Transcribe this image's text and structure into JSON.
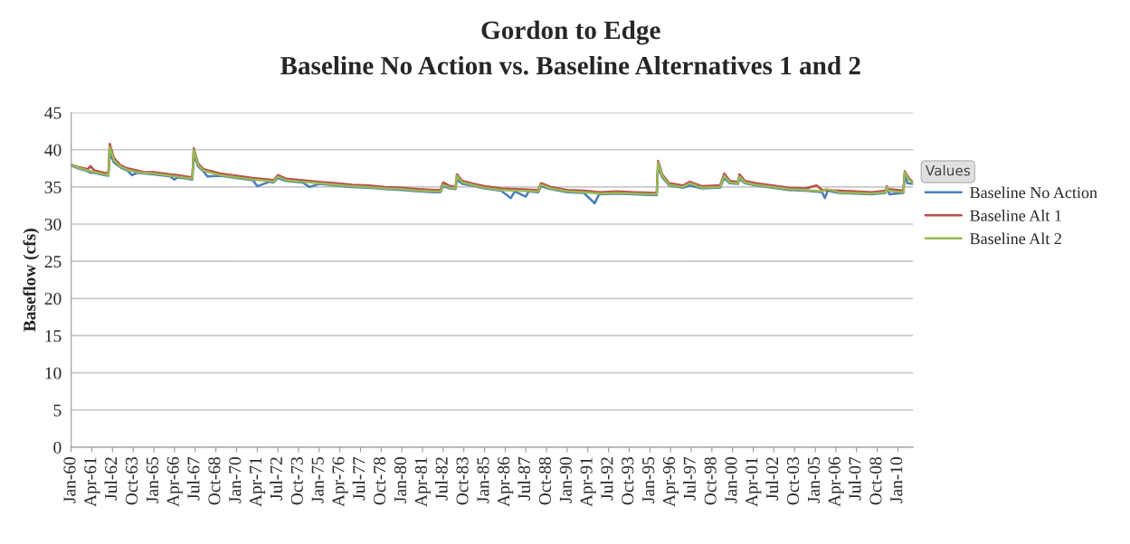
{
  "chart_data": {
    "type": "line",
    "title": "Gordon to Edge",
    "subtitle": "Baseline No Action vs. Baseline Alternatives 1 and 2",
    "ylabel": "Baseflow (cfs)",
    "legend_title": "Values",
    "legend": "right",
    "grid": "y",
    "marker": "none",
    "line_style": "solid",
    "ylim": [
      0,
      45
    ],
    "yticks": [
      0,
      5,
      10,
      15,
      20,
      25,
      30,
      35,
      40,
      45
    ],
    "xlim": [
      "1960-01",
      "2010-12"
    ],
    "xticks": [
      {
        "value": "1960-01",
        "label": "Jan-60"
      },
      {
        "value": "1961-04",
        "label": "Apr-61"
      },
      {
        "value": "1962-07",
        "label": "Jul-62"
      },
      {
        "value": "1963-10",
        "label": "Oct-63"
      },
      {
        "value": "1965-01",
        "label": "Jan-65"
      },
      {
        "value": "1966-04",
        "label": "Apr-66"
      },
      {
        "value": "1967-07",
        "label": "Jul-67"
      },
      {
        "value": "1968-10",
        "label": "Oct-68"
      },
      {
        "value": "1970-01",
        "label": "Jan-70"
      },
      {
        "value": "1971-04",
        "label": "Apr-71"
      },
      {
        "value": "1972-07",
        "label": "Jul-72"
      },
      {
        "value": "1973-10",
        "label": "Oct-73"
      },
      {
        "value": "1975-01",
        "label": "Jan-75"
      },
      {
        "value": "1976-04",
        "label": "Apr-76"
      },
      {
        "value": "1977-07",
        "label": "Jul-77"
      },
      {
        "value": "1978-10",
        "label": "Oct-78"
      },
      {
        "value": "1980-01",
        "label": "Jan-80"
      },
      {
        "value": "1981-04",
        "label": "Apr-81"
      },
      {
        "value": "1982-07",
        "label": "Jul-82"
      },
      {
        "value": "1983-10",
        "label": "Oct-83"
      },
      {
        "value": "1985-01",
        "label": "Jan-85"
      },
      {
        "value": "1986-04",
        "label": "Apr-86"
      },
      {
        "value": "1987-07",
        "label": "Jul-87"
      },
      {
        "value": "1988-10",
        "label": "Oct-88"
      },
      {
        "value": "1990-01",
        "label": "Jan-90"
      },
      {
        "value": "1991-04",
        "label": "Apr-91"
      },
      {
        "value": "1992-07",
        "label": "Jul-92"
      },
      {
        "value": "1993-10",
        "label": "Oct-93"
      },
      {
        "value": "1995-01",
        "label": "Jan-95"
      },
      {
        "value": "1996-04",
        "label": "Apr-96"
      },
      {
        "value": "1997-07",
        "label": "Jul-97"
      },
      {
        "value": "1998-10",
        "label": "Oct-98"
      },
      {
        "value": "2000-01",
        "label": "Jan-00"
      },
      {
        "value": "2001-04",
        "label": "Apr-01"
      },
      {
        "value": "2002-07",
        "label": "Jul-02"
      },
      {
        "value": "2003-10",
        "label": "Oct-03"
      },
      {
        "value": "2005-01",
        "label": "Jan-05"
      },
      {
        "value": "2006-04",
        "label": "Apr-06"
      },
      {
        "value": "2007-07",
        "label": "Jul-07"
      },
      {
        "value": "2008-10",
        "label": "Oct-08"
      },
      {
        "value": "2010-01",
        "label": "Jan-10"
      }
    ],
    "series": [
      {
        "name": "Baseline No Action",
        "color": "#4a7ebb",
        "x": [
          "1960-01",
          "1960-06",
          "1961-01",
          "1961-03",
          "1961-06",
          "1962-01",
          "1962-04",
          "1962-05",
          "1962-08",
          "1963-01",
          "1963-06",
          "1963-09",
          "1964-01",
          "1964-06",
          "1965-01",
          "1966-01",
          "1966-04",
          "1966-06",
          "1967-01",
          "1967-05",
          "1967-06",
          "1967-09",
          "1968-01",
          "1968-04",
          "1969-01",
          "1970-01",
          "1971-01",
          "1971-04",
          "1972-01",
          "1972-04",
          "1972-07",
          "1973-01",
          "1974-01",
          "1974-06",
          "1975-01",
          "1976-01",
          "1977-01",
          "1978-01",
          "1979-01",
          "1980-01",
          "1981-01",
          "1982-01",
          "1982-05",
          "1982-07",
          "1982-12",
          "1983-04",
          "1983-05",
          "1983-09",
          "1984-06",
          "1985-01",
          "1986-01",
          "1986-08",
          "1986-11",
          "1987-07",
          "1987-09",
          "1988-04",
          "1988-06",
          "1989-01",
          "1990-01",
          "1991-01",
          "1991-09",
          "1991-12",
          "1992-01",
          "1993-01",
          "1994-01",
          "1995-06",
          "1995-07",
          "1995-10",
          "1996-03",
          "1997-01",
          "1997-06",
          "1998-03",
          "1999-01",
          "1999-04",
          "1999-07",
          "1999-11",
          "2000-05",
          "2000-06",
          "2000-10",
          "2001-06",
          "2002-06",
          "2003-06",
          "2004-06",
          "2005-06",
          "2005-08",
          "2005-10",
          "2006-06",
          "2007-06",
          "2008-06",
          "2009-04",
          "2009-05",
          "2009-07",
          "2010-05",
          "2010-06",
          "2010-08",
          "2010-12"
        ],
        "values": [
          37.9,
          37.5,
          37.1,
          36.9,
          36.9,
          36.6,
          36.5,
          39.5,
          38.3,
          37.6,
          37.2,
          36.6,
          36.9,
          36.8,
          36.7,
          36.4,
          36.0,
          36.3,
          36.1,
          36.0,
          39.3,
          37.8,
          37.1,
          36.4,
          36.5,
          36.2,
          35.9,
          35.1,
          35.7,
          35.6,
          36.2,
          35.8,
          35.6,
          35.0,
          35.4,
          35.2,
          35.0,
          34.9,
          34.7,
          34.6,
          34.4,
          34.3,
          34.3,
          35.1,
          34.8,
          34.7,
          36.0,
          35.4,
          35.1,
          34.8,
          34.5,
          33.5,
          34.4,
          33.7,
          34.4,
          34.3,
          35.1,
          34.7,
          34.3,
          34.2,
          32.8,
          34.0,
          34.0,
          34.1,
          34.0,
          33.9,
          37.8,
          36.3,
          35.2,
          34.9,
          35.2,
          34.8,
          34.9,
          34.9,
          36.2,
          35.5,
          35.4,
          36.1,
          35.5,
          35.2,
          34.9,
          34.6,
          34.5,
          34.3,
          33.5,
          34.5,
          34.2,
          34.1,
          34.0,
          34.2,
          34.8,
          34.0,
          34.2,
          36.6,
          35.5,
          35.4
        ]
      },
      {
        "name": "Baseline Alt 1",
        "color": "#be4b48",
        "x": [
          "1960-01",
          "1960-06",
          "1961-01",
          "1961-03",
          "1961-06",
          "1962-01",
          "1962-04",
          "1962-05",
          "1962-08",
          "1963-01",
          "1963-06",
          "1964-01",
          "1964-06",
          "1965-01",
          "1966-01",
          "1966-06",
          "1967-01",
          "1967-05",
          "1967-06",
          "1967-09",
          "1968-01",
          "1969-01",
          "1970-01",
          "1971-01",
          "1972-01",
          "1972-04",
          "1972-07",
          "1973-01",
          "1974-01",
          "1975-01",
          "1976-01",
          "1977-01",
          "1978-01",
          "1979-01",
          "1980-01",
          "1981-01",
          "1982-01",
          "1982-05",
          "1982-07",
          "1982-12",
          "1983-04",
          "1983-05",
          "1983-09",
          "1984-06",
          "1985-01",
          "1986-01",
          "1987-01",
          "1988-04",
          "1988-06",
          "1989-01",
          "1990-01",
          "1991-01",
          "1992-01",
          "1993-01",
          "1994-01",
          "1995-06",
          "1995-07",
          "1995-10",
          "1996-03",
          "1997-01",
          "1997-06",
          "1998-03",
          "1999-01",
          "1999-04",
          "1999-07",
          "1999-11",
          "2000-05",
          "2000-06",
          "2000-10",
          "2001-06",
          "2002-06",
          "2003-06",
          "2004-06",
          "2005-02",
          "2005-06",
          "2006-06",
          "2007-06",
          "2008-06",
          "2009-04",
          "2009-05",
          "2009-06",
          "2010-05",
          "2010-06",
          "2010-09",
          "2010-12"
        ],
        "values": [
          38.0,
          37.7,
          37.4,
          37.8,
          37.2,
          36.9,
          36.8,
          40.8,
          38.9,
          37.9,
          37.5,
          37.2,
          37.0,
          37.0,
          36.7,
          36.6,
          36.4,
          36.3,
          40.2,
          38.2,
          37.4,
          36.8,
          36.5,
          36.2,
          36.0,
          35.9,
          36.6,
          36.1,
          35.9,
          35.7,
          35.5,
          35.3,
          35.2,
          35.0,
          34.9,
          34.7,
          34.6,
          34.6,
          35.6,
          35.1,
          35.0,
          36.7,
          35.8,
          35.4,
          35.1,
          34.8,
          34.7,
          34.6,
          35.5,
          35.0,
          34.6,
          34.5,
          34.3,
          34.4,
          34.3,
          34.2,
          38.5,
          36.7,
          35.5,
          35.2,
          35.7,
          35.1,
          35.2,
          35.2,
          36.8,
          35.8,
          35.7,
          36.7,
          35.8,
          35.5,
          35.2,
          34.9,
          34.8,
          35.2,
          34.6,
          34.5,
          34.4,
          34.3,
          34.5,
          35.1,
          34.7,
          34.5,
          37.1,
          36.2,
          35.6
        ]
      },
      {
        "name": "Baseline Alt 2",
        "color": "#98b954",
        "x": [
          "1960-01",
          "1960-06",
          "1961-01",
          "1961-06",
          "1962-01",
          "1962-04",
          "1962-05",
          "1962-08",
          "1963-01",
          "1963-06",
          "1964-01",
          "1964-06",
          "1965-01",
          "1966-01",
          "1966-06",
          "1967-01",
          "1967-05",
          "1967-06",
          "1967-09",
          "1968-01",
          "1969-01",
          "1970-01",
          "1971-01",
          "1972-01",
          "1972-04",
          "1972-07",
          "1973-01",
          "1974-01",
          "1975-01",
          "1976-01",
          "1977-01",
          "1978-01",
          "1979-01",
          "1980-01",
          "1981-01",
          "1982-01",
          "1982-05",
          "1982-07",
          "1982-12",
          "1983-04",
          "1983-05",
          "1983-09",
          "1984-06",
          "1985-01",
          "1986-01",
          "1987-01",
          "1988-04",
          "1988-06",
          "1989-01",
          "1990-01",
          "1991-01",
          "1992-01",
          "1993-01",
          "1994-01",
          "1995-06",
          "1995-07",
          "1995-10",
          "1996-03",
          "1997-01",
          "1997-06",
          "1998-03",
          "1999-01",
          "1999-04",
          "1999-07",
          "1999-11",
          "2000-05",
          "2000-06",
          "2000-10",
          "2001-06",
          "2002-06",
          "2003-06",
          "2004-06",
          "2005-06",
          "2005-09",
          "2006-06",
          "2007-06",
          "2008-06",
          "2009-04",
          "2009-05",
          "2009-06",
          "2010-05",
          "2010-06",
          "2010-09",
          "2010-12"
        ],
        "values": [
          38.0,
          37.6,
          37.2,
          37.0,
          36.7,
          36.6,
          40.4,
          38.6,
          37.7,
          37.3,
          37.0,
          36.9,
          36.8,
          36.5,
          36.4,
          36.2,
          36.1,
          40.0,
          38.0,
          37.2,
          36.6,
          36.3,
          36.0,
          35.8,
          35.7,
          36.4,
          35.9,
          35.7,
          35.5,
          35.3,
          35.1,
          35.0,
          34.8,
          34.7,
          34.5,
          34.4,
          34.4,
          35.3,
          34.9,
          34.8,
          36.5,
          35.6,
          35.2,
          34.9,
          34.6,
          34.5,
          34.4,
          35.3,
          34.8,
          34.4,
          34.3,
          34.1,
          34.2,
          34.1,
          34.0,
          38.3,
          36.5,
          35.3,
          35.0,
          35.5,
          34.9,
          35.0,
          35.0,
          36.5,
          35.6,
          35.5,
          36.4,
          35.6,
          35.3,
          35.0,
          34.7,
          34.6,
          34.4,
          34.7,
          34.3,
          34.2,
          34.1,
          34.3,
          35.0,
          34.5,
          34.3,
          37.0,
          36.0,
          35.5
        ]
      }
    ]
  }
}
